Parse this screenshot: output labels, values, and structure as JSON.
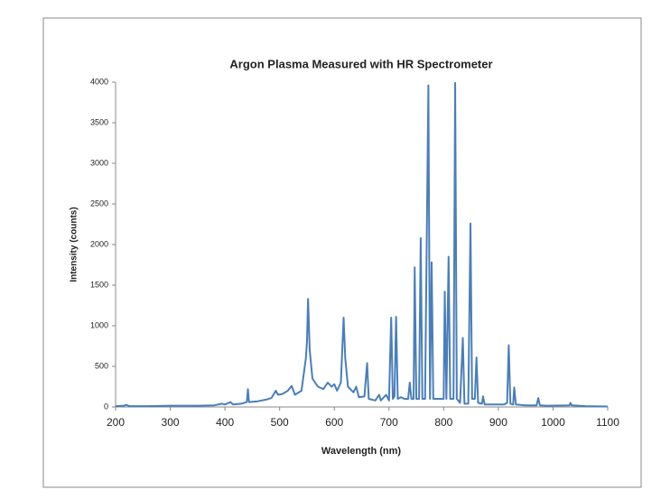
{
  "chart_data": {
    "type": "line",
    "title": "Argon Plasma Measured with HR Spectrometer",
    "x_label": "Wavelength (nm)",
    "y_label": "Intensity (counts)",
    "x": [
      200,
      215,
      220,
      225,
      260,
      300,
      350,
      380,
      395,
      400,
      410,
      415,
      430,
      440,
      442,
      444,
      460,
      475,
      485,
      493,
      497,
      505,
      515,
      522,
      528,
      540,
      548,
      550,
      552,
      555,
      560,
      570,
      580,
      588,
      595,
      600,
      605,
      612,
      617,
      620,
      625,
      635,
      640,
      645,
      655,
      660,
      663,
      675,
      682,
      685,
      695,
      700,
      704,
      707,
      710,
      713,
      716,
      722,
      728,
      735,
      738,
      741,
      745,
      747,
      750,
      755,
      758,
      761,
      766,
      772,
      775,
      778,
      781,
      790,
      795,
      800,
      802,
      805,
      809,
      812,
      818,
      821,
      824,
      830,
      835,
      838,
      845,
      849,
      852,
      857,
      860,
      863,
      870,
      872,
      875,
      890,
      910,
      916,
      919,
      922,
      927,
      929,
      932,
      950,
      970,
      973,
      976,
      990,
      1030,
      1032,
      1034,
      1060,
      1100
    ],
    "series": [
      {
        "name": "Intensity",
        "color": "#4a7ebb",
        "values": [
          10,
          15,
          25,
          10,
          10,
          15,
          15,
          20,
          40,
          30,
          60,
          30,
          40,
          60,
          220,
          60,
          70,
          90,
          110,
          200,
          150,
          160,
          200,
          260,
          150,
          200,
          600,
          800,
          1330,
          700,
          350,
          250,
          220,
          300,
          250,
          280,
          200,
          300,
          1100,
          600,
          250,
          180,
          250,
          120,
          130,
          540,
          100,
          80,
          150,
          80,
          150,
          80,
          1100,
          100,
          130,
          1110,
          100,
          120,
          100,
          100,
          300,
          100,
          100,
          1720,
          100,
          100,
          2080,
          100,
          100,
          3960,
          100,
          1780,
          100,
          100,
          100,
          100,
          1420,
          100,
          1850,
          100,
          100,
          3990,
          100,
          50,
          850,
          40,
          40,
          2260,
          100,
          100,
          610,
          50,
          40,
          130,
          30,
          30,
          30,
          50,
          760,
          40,
          30,
          240,
          30,
          20,
          20,
          110,
          20,
          15,
          20,
          50,
          20,
          10,
          5
        ]
      }
    ],
    "xlim": [
      200,
      1100
    ],
    "xticks": [
      200,
      300,
      400,
      500,
      600,
      700,
      800,
      900,
      1000,
      1100
    ],
    "ylim": [
      0,
      4000
    ],
    "yticks": [
      0,
      500,
      1000,
      1500,
      2000,
      2500,
      3000,
      3500,
      4000
    ],
    "grid": false
  }
}
